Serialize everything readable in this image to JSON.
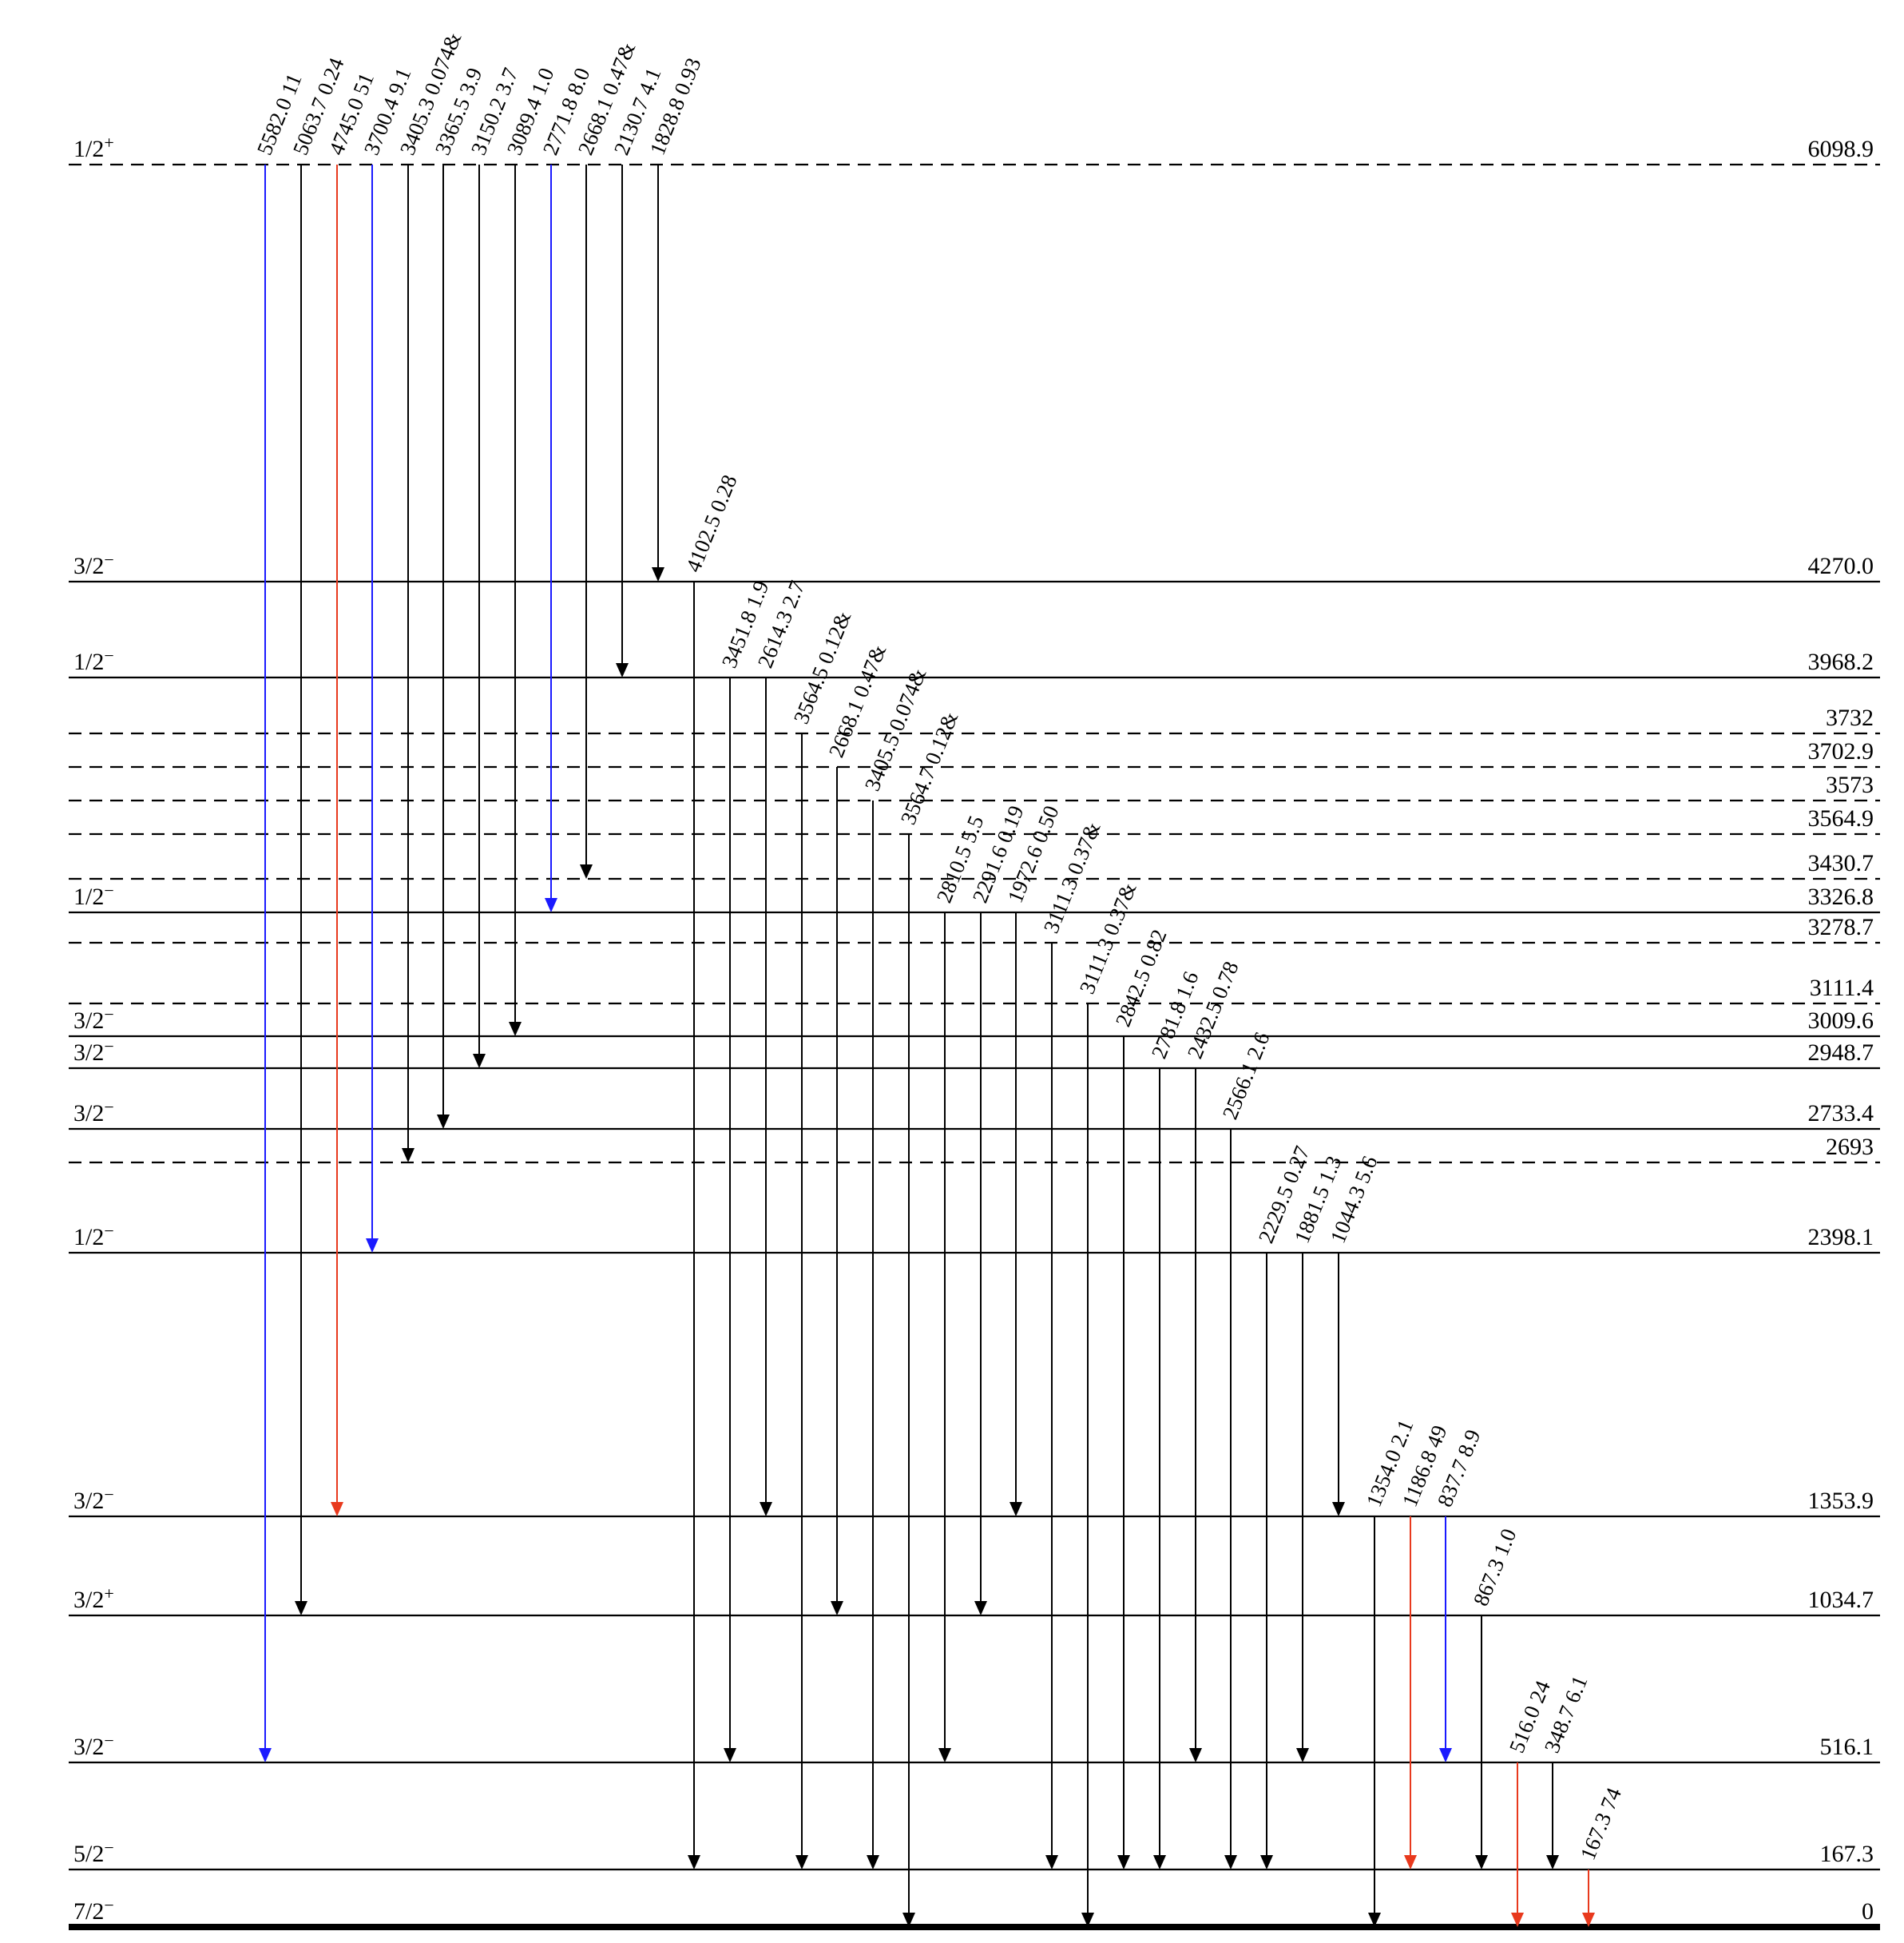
{
  "levels": [
    {
      "id": "L0",
      "energy": "0",
      "jp": "7/2",
      "parity": "−",
      "style": "ground"
    },
    {
      "id": "L167",
      "energy": "167.3",
      "jp": "5/2",
      "parity": "−",
      "style": "solid"
    },
    {
      "id": "L516",
      "energy": "516.1",
      "jp": "3/2",
      "parity": "−",
      "style": "solid"
    },
    {
      "id": "L1034",
      "energy": "1034.7",
      "jp": "3/2",
      "parity": "+",
      "style": "solid"
    },
    {
      "id": "L1353",
      "energy": "1353.9",
      "jp": "3/2",
      "parity": "−",
      "style": "solid"
    },
    {
      "id": "L2398",
      "energy": "2398.1",
      "jp": "1/2",
      "parity": "−",
      "style": "solid"
    },
    {
      "id": "L2693",
      "energy": "2693",
      "jp": "",
      "parity": "",
      "style": "dashed"
    },
    {
      "id": "L2733",
      "energy": "2733.4",
      "jp": "3/2",
      "parity": "−",
      "style": "solid"
    },
    {
      "id": "L2948",
      "energy": "2948.7",
      "jp": "3/2",
      "parity": "−",
      "style": "solid"
    },
    {
      "id": "L3009",
      "energy": "3009.6",
      "jp": "3/2",
      "parity": "−",
      "style": "solid"
    },
    {
      "id": "L3111",
      "energy": "3111.4",
      "jp": "",
      "parity": "",
      "style": "dashed"
    },
    {
      "id": "L3278",
      "energy": "3278.7",
      "jp": "",
      "parity": "",
      "style": "dashed"
    },
    {
      "id": "L3326",
      "energy": "3326.8",
      "jp": "1/2",
      "parity": "−",
      "style": "solid"
    },
    {
      "id": "L3430",
      "energy": "3430.7",
      "jp": "",
      "parity": "",
      "style": "dashed"
    },
    {
      "id": "L3564",
      "energy": "3564.9",
      "jp": "",
      "parity": "",
      "style": "dashed"
    },
    {
      "id": "L3573",
      "energy": "3573",
      "jp": "",
      "parity": "",
      "style": "dashed"
    },
    {
      "id": "L3702",
      "energy": "3702.9",
      "jp": "",
      "parity": "",
      "style": "dashed"
    },
    {
      "id": "L3732",
      "energy": "3732",
      "jp": "",
      "parity": "",
      "style": "dashed"
    },
    {
      "id": "L3968",
      "energy": "3968.2",
      "jp": "1/2",
      "parity": "−",
      "style": "solid"
    },
    {
      "id": "L4270",
      "energy": "4270.0",
      "jp": "3/2",
      "parity": "−",
      "style": "solid"
    },
    {
      "id": "L6098",
      "energy": "6098.9",
      "jp": "1/2",
      "parity": "+",
      "style": "dashed"
    }
  ],
  "transitions": [
    {
      "from": "L6098",
      "to": "L516",
      "label": "5582.0  11",
      "color": "blue"
    },
    {
      "from": "L6098",
      "to": "L1034",
      "label": "5063.7  0.24",
      "color": "black"
    },
    {
      "from": "L6098",
      "to": "L1353",
      "label": "4745.0  51",
      "color": "red"
    },
    {
      "from": "L6098",
      "to": "L2398",
      "label": "3700.4  9.1",
      "color": "blue"
    },
    {
      "from": "L6098",
      "to": "L2693",
      "label": "3405.3  0.074&",
      "color": "black"
    },
    {
      "from": "L6098",
      "to": "L2733",
      "label": "3365.5  3.9",
      "color": "black"
    },
    {
      "from": "L6098",
      "to": "L2948",
      "label": "3150.2  3.7",
      "color": "black"
    },
    {
      "from": "L6098",
      "to": "L3009",
      "label": "3089.4  1.0",
      "color": "black"
    },
    {
      "from": "L6098",
      "to": "L3326",
      "label": "2771.8  8.0",
      "color": "blue"
    },
    {
      "from": "L6098",
      "to": "L3430",
      "label": "2668.1  0.47&",
      "color": "black"
    },
    {
      "from": "L6098",
      "to": "L3968",
      "label": "2130.7  4.1",
      "color": "black"
    },
    {
      "from": "L6098",
      "to": "L4270",
      "label": "1828.8  0.93",
      "color": "black"
    },
    {
      "from": "L4270",
      "to": "L167",
      "label": "4102.5  0.28",
      "color": "black"
    },
    {
      "from": "L3968",
      "to": "L516",
      "label": "3451.8  1.9",
      "color": "black"
    },
    {
      "from": "L3968",
      "to": "L1353",
      "label": "2614.3  2.7",
      "color": "black"
    },
    {
      "from": "L3732",
      "to": "L167",
      "label": "3564.5  0.12&",
      "color": "black"
    },
    {
      "from": "L3702",
      "to": "L1034",
      "label": "2668.1  0.47&",
      "color": "black"
    },
    {
      "from": "L3573",
      "to": "L167",
      "label": "3405.5  0.074&",
      "color": "black"
    },
    {
      "from": "L3564",
      "to": "L0",
      "label": "3564.7  0.12&",
      "color": "black"
    },
    {
      "from": "L3326",
      "to": "L516",
      "label": "2810.5  5.5",
      "color": "black"
    },
    {
      "from": "L3326",
      "to": "L1034",
      "label": "2291.6  0.19",
      "color": "black"
    },
    {
      "from": "L3326",
      "to": "L1353",
      "label": "1972.6  0.50",
      "color": "black"
    },
    {
      "from": "L3278",
      "to": "L167",
      "label": "3111.3  0.37&",
      "color": "black"
    },
    {
      "from": "L3111",
      "to": "L0",
      "label": "3111.3  0.37&",
      "color": "black"
    },
    {
      "from": "L3009",
      "to": "L167",
      "label": "2842.5  0.82",
      "color": "black"
    },
    {
      "from": "L2948",
      "to": "L167",
      "label": "2781.8  1.6",
      "color": "black"
    },
    {
      "from": "L2948",
      "to": "L516",
      "label": "2432.5  0.78",
      "color": "black"
    },
    {
      "from": "L2733",
      "to": "L167",
      "label": "2566.1  2.6",
      "color": "black"
    },
    {
      "from": "L2398",
      "to": "L167",
      "label": "2229.5  0.27",
      "color": "black"
    },
    {
      "from": "L2398",
      "to": "L516",
      "label": "1881.5  1.3",
      "color": "black"
    },
    {
      "from": "L2398",
      "to": "L1353",
      "label": "1044.3  5.6",
      "color": "black"
    },
    {
      "from": "L1353",
      "to": "L0",
      "label": "1354.0  2.1",
      "color": "black"
    },
    {
      "from": "L1353",
      "to": "L167",
      "label": "1186.8  49",
      "color": "red"
    },
    {
      "from": "L1353",
      "to": "L516",
      "label": "837.7  8.9",
      "color": "blue"
    },
    {
      "from": "L1034",
      "to": "L167",
      "label": "867.3  1.0",
      "color": "black"
    },
    {
      "from": "L516",
      "to": "L0",
      "label": "516.0  24",
      "color": "red"
    },
    {
      "from": "L516",
      "to": "L167",
      "label": "348.7  6.1",
      "color": "black"
    },
    {
      "from": "L167",
      "to": "L0",
      "label": "167.3  74",
      "color": "red"
    }
  ],
  "colors": {
    "blue": "#1a1aff",
    "red": "#e8391d",
    "black": "#000000"
  }
}
